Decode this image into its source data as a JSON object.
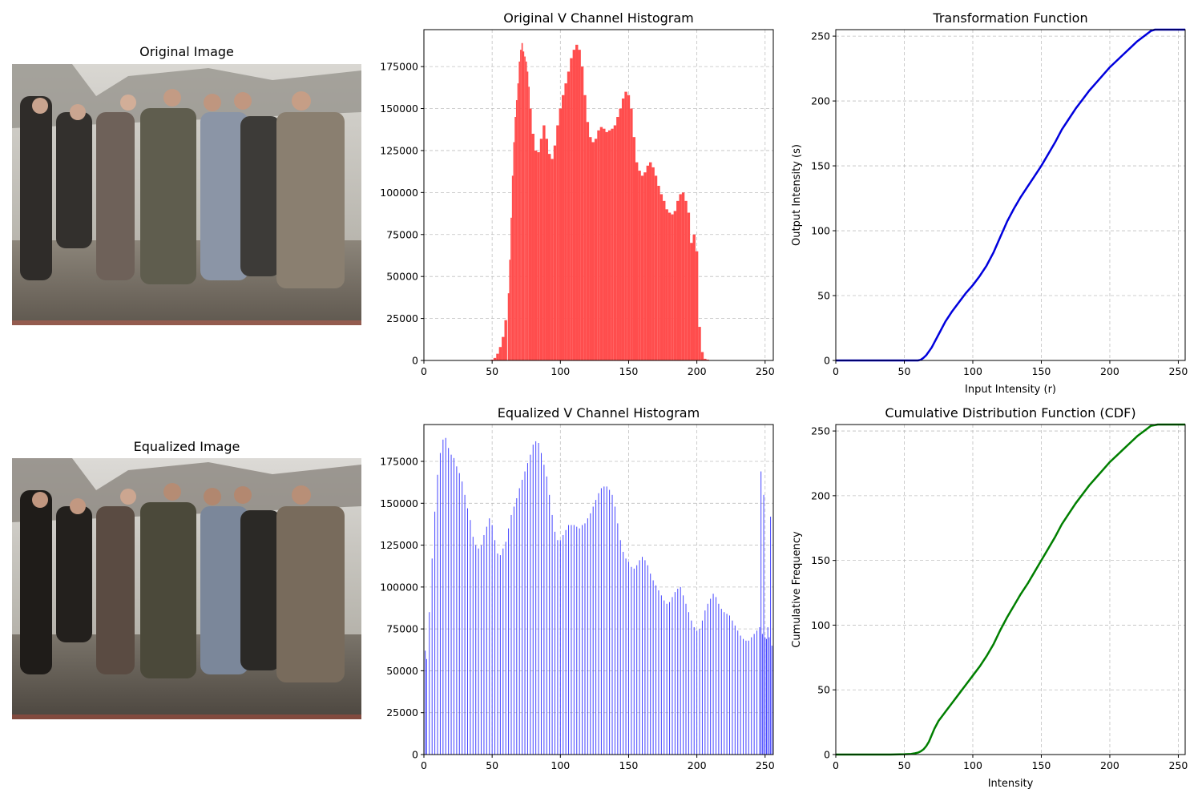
{
  "figure": {
    "images": [
      {
        "key": "original",
        "title": "Original Image"
      },
      {
        "key": "equalized",
        "title": "Equalized Image"
      }
    ]
  },
  "chart_data": [
    {
      "key": "orig_hist",
      "type": "bar",
      "title": "Original V Channel Histogram",
      "xlabel": "",
      "ylabel": "",
      "color": "#ff4d4d",
      "xlim": [
        0,
        256
      ],
      "ylim": [
        0,
        197000
      ],
      "xticks": [
        0,
        50,
        100,
        150,
        200,
        250
      ],
      "yticks": [
        0,
        25000,
        50000,
        75000,
        100000,
        125000,
        150000,
        175000
      ],
      "grid": true,
      "x": [
        50,
        52,
        54,
        56,
        58,
        60,
        62,
        63,
        64,
        65,
        66,
        67,
        68,
        69,
        70,
        71,
        72,
        73,
        74,
        75,
        76,
        77,
        78,
        80,
        82,
        84,
        86,
        88,
        90,
        92,
        94,
        96,
        98,
        100,
        102,
        104,
        106,
        108,
        110,
        112,
        114,
        116,
        118,
        120,
        122,
        124,
        126,
        128,
        130,
        132,
        134,
        136,
        138,
        140,
        142,
        144,
        146,
        148,
        150,
        152,
        154,
        156,
        158,
        160,
        162,
        164,
        166,
        168,
        170,
        172,
        174,
        176,
        178,
        180,
        182,
        184,
        186,
        188,
        190,
        192,
        194,
        196,
        198,
        200,
        202,
        204,
        206,
        208,
        210,
        212,
        214,
        216,
        218,
        220,
        222,
        224,
        226,
        228,
        230,
        231,
        232,
        233,
        234,
        235,
        236,
        237,
        238,
        239,
        240,
        242,
        244,
        246,
        248
      ],
      "values": [
        500,
        1500,
        4000,
        8000,
        14000,
        24000,
        40000,
        60000,
        85000,
        110000,
        130000,
        145000,
        155000,
        165000,
        178000,
        185000,
        189000,
        184000,
        181000,
        178000,
        172000,
        163000,
        150000,
        135000,
        125000,
        124000,
        132000,
        140000,
        132000,
        123000,
        120000,
        128000,
        140000,
        150000,
        158000,
        165000,
        172000,
        180000,
        185000,
        188000,
        185000,
        175000,
        158000,
        142000,
        133000,
        130000,
        132000,
        137000,
        139000,
        138000,
        136000,
        137000,
        138000,
        140000,
        145000,
        150000,
        156000,
        160000,
        158000,
        150000,
        133000,
        118000,
        113000,
        110000,
        112000,
        116000,
        118000,
        115000,
        110000,
        104000,
        99000,
        95000,
        90000,
        88000,
        87000,
        89000,
        95000,
        99000,
        100000,
        95000,
        88000,
        70000,
        75000,
        65000,
        20000,
        5000,
        1000,
        500,
        200,
        100,
        50,
        40,
        30,
        20,
        10,
        5,
        2,
        1,
        1,
        1,
        1,
        1,
        1,
        1,
        1,
        1,
        1,
        1,
        1,
        1,
        1,
        1,
        1
      ]
    },
    {
      "key": "transform",
      "type": "line",
      "title": "Transformation Function",
      "xlabel": "Input Intensity (r)",
      "ylabel": "Output Intensity (s)",
      "color": "#0000dd",
      "xlim": [
        0,
        255
      ],
      "ylim": [
        0,
        255
      ],
      "xticks": [
        0,
        50,
        100,
        150,
        200,
        250
      ],
      "yticks": [
        0,
        50,
        100,
        150,
        200,
        250
      ],
      "grid": true,
      "x": [
        0,
        20,
        40,
        55,
        60,
        62,
        64,
        66,
        68,
        70,
        72,
        75,
        80,
        85,
        90,
        95,
        100,
        105,
        110,
        115,
        120,
        125,
        130,
        135,
        140,
        145,
        150,
        155,
        160,
        165,
        170,
        175,
        180,
        185,
        190,
        195,
        200,
        205,
        210,
        215,
        220,
        225,
        230,
        233,
        236,
        240,
        245,
        250,
        255
      ],
      "values": [
        0,
        0,
        0,
        0,
        0,
        0.5,
        2,
        4,
        7,
        10,
        14,
        20,
        30,
        38,
        45,
        52,
        58,
        65,
        73,
        83,
        95,
        107,
        117,
        126,
        134,
        142,
        150,
        159,
        168,
        178,
        186,
        194,
        201,
        208,
        214,
        220,
        226,
        231,
        236,
        241,
        246,
        250,
        254,
        255,
        255,
        255,
        255,
        255,
        255
      ]
    },
    {
      "key": "eq_hist",
      "type": "bar",
      "title": "Equalized V Channel Histogram",
      "xlabel": "",
      "ylabel": "",
      "color": "#4444ff",
      "xlim": [
        0,
        256
      ],
      "ylim": [
        0,
        197000
      ],
      "xticks": [
        0,
        50,
        100,
        150,
        200,
        250
      ],
      "yticks": [
        0,
        25000,
        50000,
        75000,
        100000,
        125000,
        150000,
        175000
      ],
      "grid": true,
      "x": [
        1,
        2,
        4,
        6,
        8,
        10,
        12,
        14,
        16,
        18,
        20,
        22,
        24,
        26,
        28,
        30,
        32,
        34,
        36,
        38,
        40,
        42,
        44,
        46,
        48,
        50,
        52,
        54,
        56,
        58,
        60,
        62,
        64,
        66,
        68,
        70,
        72,
        74,
        76,
        78,
        80,
        82,
        84,
        86,
        88,
        90,
        92,
        94,
        96,
        98,
        100,
        102,
        104,
        106,
        108,
        110,
        112,
        114,
        116,
        118,
        120,
        122,
        124,
        126,
        128,
        130,
        132,
        134,
        136,
        138,
        140,
        142,
        144,
        146,
        148,
        150,
        152,
        154,
        156,
        158,
        160,
        162,
        164,
        166,
        168,
        170,
        172,
        174,
        176,
        178,
        180,
        182,
        184,
        186,
        188,
        190,
        192,
        194,
        196,
        198,
        200,
        202,
        204,
        206,
        208,
        210,
        212,
        214,
        216,
        218,
        220,
        222,
        224,
        226,
        228,
        230,
        232,
        234,
        236,
        238,
        240,
        242,
        244,
        246,
        247,
        248,
        249,
        250,
        251,
        252,
        253,
        254,
        255
      ],
      "values": [
        62000,
        57000,
        85000,
        117000,
        145000,
        167000,
        180000,
        188000,
        189000,
        183000,
        179000,
        177000,
        172000,
        168000,
        163000,
        155000,
        147000,
        140000,
        130000,
        125000,
        123000,
        125000,
        131000,
        136000,
        141000,
        137000,
        128000,
        120000,
        119000,
        123000,
        127000,
        135000,
        143000,
        148000,
        153000,
        159000,
        164000,
        169000,
        174000,
        179000,
        185000,
        187000,
        186000,
        180000,
        173000,
        166000,
        155000,
        143000,
        133000,
        128000,
        128000,
        131000,
        134000,
        137000,
        137000,
        137000,
        136000,
        135000,
        137000,
        138000,
        141000,
        144000,
        148000,
        152000,
        156000,
        159000,
        160000,
        160000,
        158000,
        155000,
        148000,
        138000,
        128000,
        121000,
        117000,
        115000,
        112000,
        111000,
        113000,
        116000,
        118000,
        116000,
        113000,
        108000,
        104000,
        101000,
        98000,
        95000,
        92000,
        90000,
        91000,
        94000,
        97000,
        99000,
        100000,
        95000,
        90000,
        85000,
        80000,
        76000,
        74000,
        75000,
        80000,
        86000,
        90000,
        93000,
        96000,
        94000,
        90000,
        87000,
        85000,
        84000,
        83000,
        80000,
        77000,
        74000,
        71000,
        69000,
        68000,
        68000,
        70000,
        72000,
        74000,
        76000,
        169000,
        72000,
        155000,
        70000,
        69000,
        76000,
        70000,
        142000,
        65000
      ]
    },
    {
      "key": "cdf",
      "type": "line",
      "title": "Cumulative Distribution Function (CDF)",
      "xlabel": "Intensity",
      "ylabel": "Cumulative Frequency",
      "color": "#007f00",
      "xlim": [
        0,
        255
      ],
      "ylim": [
        0,
        255
      ],
      "xticks": [
        0,
        50,
        100,
        150,
        200,
        250
      ],
      "yticks": [
        0,
        50,
        100,
        150,
        200,
        250
      ],
      "grid": true,
      "x": [
        0,
        20,
        40,
        50,
        55,
        58,
        60,
        62,
        64,
        66,
        68,
        70,
        72,
        75,
        80,
        85,
        90,
        95,
        100,
        105,
        110,
        115,
        120,
        125,
        130,
        135,
        140,
        145,
        150,
        155,
        160,
        165,
        170,
        175,
        180,
        185,
        190,
        195,
        200,
        205,
        210,
        215,
        220,
        225,
        230,
        235,
        240,
        245,
        250,
        255
      ],
      "values": [
        0,
        0,
        0,
        0.2,
        0.5,
        1,
        1.5,
        2.5,
        4,
        6.5,
        10,
        15,
        20,
        26,
        33,
        40,
        47,
        54,
        61,
        68,
        76,
        85,
        96,
        106,
        115,
        124,
        132,
        141,
        150,
        159,
        168,
        178,
        186,
        194,
        201,
        208,
        214,
        220,
        226,
        231,
        236,
        241,
        246,
        250,
        254,
        255,
        255,
        255,
        255,
        255
      ]
    }
  ]
}
